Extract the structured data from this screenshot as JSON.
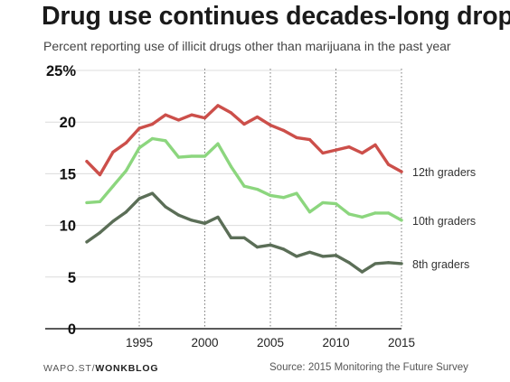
{
  "chart_data": {
    "type": "line",
    "title": "Drug use continues decades-long drop",
    "subtitle": "Percent reporting use of illicit drugs other than marijuana in the past year",
    "x": [
      1991,
      1992,
      1993,
      1994,
      1995,
      1996,
      1997,
      1998,
      1999,
      2000,
      2001,
      2002,
      2003,
      2004,
      2005,
      2006,
      2007,
      2008,
      2009,
      2010,
      2011,
      2012,
      2013,
      2014,
      2015
    ],
    "xlim": [
      1991,
      2015
    ],
    "ylim": [
      0,
      25
    ],
    "x_ticks": [
      1995,
      2000,
      2005,
      2010,
      2015
    ],
    "x_tick_labels": [
      "1995",
      "2000",
      "2005",
      "2010",
      "2015"
    ],
    "y_ticks": [
      0,
      5,
      10,
      15,
      20,
      25
    ],
    "y_tick_labels": [
      "0",
      "5",
      "10",
      "15",
      "20",
      "25%"
    ],
    "grid": "vertical dotted lines at x ticks",
    "series": [
      {
        "name": "12th graders",
        "color": "#cc4f4a",
        "values": [
          16.2,
          14.9,
          17.1,
          18.0,
          19.4,
          19.8,
          20.7,
          20.2,
          20.7,
          20.4,
          21.6,
          20.9,
          19.8,
          20.5,
          19.7,
          19.2,
          18.5,
          18.3,
          17.0,
          17.3,
          17.6,
          17.0,
          17.8,
          15.9,
          15.2
        ]
      },
      {
        "name": "10th graders",
        "color": "#8cd67e",
        "values": [
          12.2,
          12.3,
          13.8,
          15.3,
          17.5,
          18.4,
          18.2,
          16.6,
          16.7,
          16.7,
          17.9,
          15.7,
          13.8,
          13.5,
          12.9,
          12.7,
          13.1,
          11.3,
          12.2,
          12.1,
          11.1,
          10.8,
          11.2,
          11.2,
          10.5
        ]
      },
      {
        "name": "8th graders",
        "color": "#5b6e57",
        "values": [
          8.4,
          9.3,
          10.4,
          11.3,
          12.6,
          13.1,
          11.8,
          11.0,
          10.5,
          10.2,
          10.8,
          8.8,
          8.8,
          7.9,
          8.1,
          7.7,
          7.0,
          7.4,
          7.0,
          7.1,
          6.4,
          5.5,
          6.3,
          6.4,
          6.3
        ]
      }
    ]
  },
  "footer": {
    "credit_prefix": "WAPO.ST/",
    "credit_brand": "WONKBLOG",
    "source": "Source: 2015 Monitoring the Future Survey"
  }
}
